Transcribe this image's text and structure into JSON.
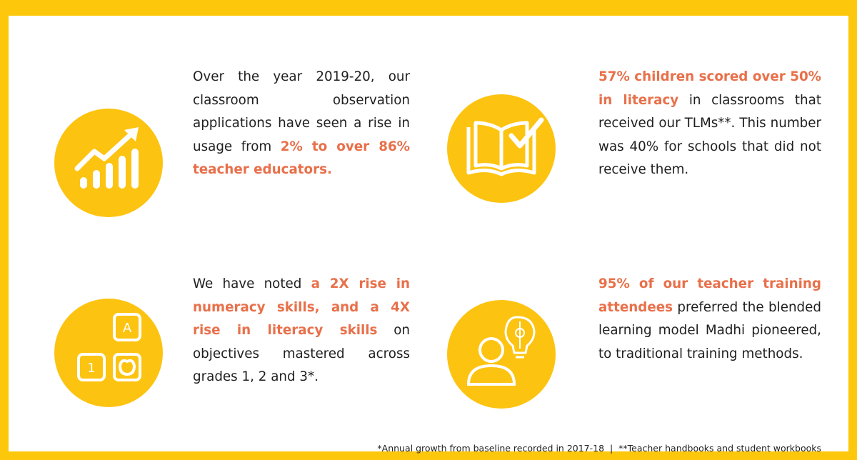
{
  "items": [
    {
      "segments": [
        {
          "text": "Over the year 2019-20, our classroom observation applications have seen a rise in usage from ",
          "emphasis": false
        },
        {
          "text": "2% to over 86% teacher educators.",
          "emphasis": true
        }
      ]
    },
    {
      "segments": [
        {
          "text": "57% children scored over 50% in literacy",
          "emphasis": true
        },
        {
          "text": " in classrooms that received our TLMs**. This number was 40% for schools that did not receive them.",
          "emphasis": false
        }
      ]
    },
    {
      "segments": [
        {
          "text": "We have noted ",
          "emphasis": false
        },
        {
          "text": "a 2X rise in numeracy skills, and a 4X rise in literacy skills",
          "emphasis": true
        },
        {
          "text": " on objectives mastered across grades 1, 2 and 3*.",
          "emphasis": false
        }
      ]
    },
    {
      "segments": [
        {
          "text": "95% of our teacher training attendees",
          "emphasis": true
        },
        {
          "text": " preferred the blended learning model Madhi pioneered, to traditional training methods.",
          "emphasis": false
        }
      ]
    }
  ],
  "icon_labels": {
    "block_letter": "A",
    "block_number": "1"
  },
  "footnote": "*Annual growth from baseline recorded in 2017-18  |  **Teacher handbooks and student workbooks"
}
